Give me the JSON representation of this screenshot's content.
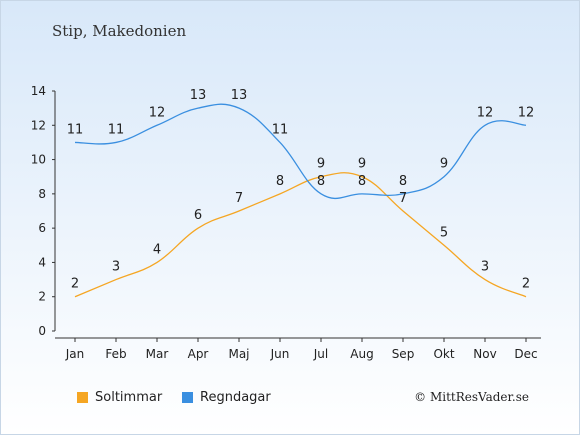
{
  "title": "Stip, Makedonien",
  "copyright": "© MittResVader.se",
  "colors": {
    "sun": "#f5a623",
    "rain": "#3a8fe0"
  },
  "chart_data": {
    "type": "line",
    "categories": [
      "Jan",
      "Feb",
      "Mar",
      "Apr",
      "Maj",
      "Jun",
      "Jul",
      "Aug",
      "Sep",
      "Okt",
      "Nov",
      "Dec"
    ],
    "series": [
      {
        "name": "Soltimmar",
        "values": [
          2,
          3,
          4,
          6,
          7,
          8,
          9,
          9,
          7,
          5,
          3,
          2
        ]
      },
      {
        "name": "Regndagar",
        "values": [
          11,
          11,
          12,
          13,
          13,
          11,
          8,
          8,
          8,
          9,
          12,
          12
        ]
      }
    ],
    "ylim": [
      0,
      14
    ],
    "yticks": [
      0,
      2,
      4,
      6,
      8,
      10,
      12,
      14
    ],
    "grid": false,
    "legend": "bottom-left"
  }
}
